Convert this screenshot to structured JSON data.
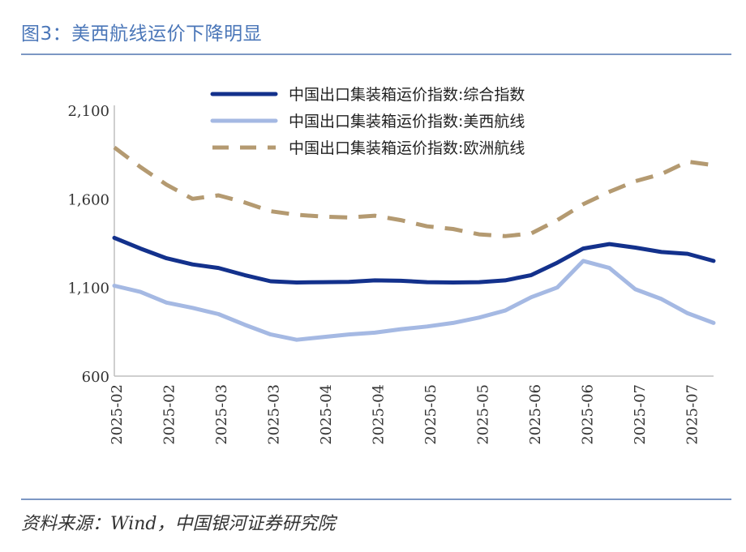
{
  "header": {
    "title": "图3：美西航线运价下降明显"
  },
  "footer": {
    "source": "资料来源：Wind，中国银河证券研究院"
  },
  "chart_data": {
    "type": "line",
    "title": "图3：美西航线运价下降明显",
    "xlabel": "",
    "ylabel": "",
    "ylim": [
      600,
      2100
    ],
    "yticks": [
      "600",
      "1,100",
      "1,600",
      "2,100"
    ],
    "x_tick_labels": [
      "2025-02",
      "2025-02",
      "2025-03",
      "2025-03",
      "2025-04",
      "2025-04",
      "2025-05",
      "2025-05",
      "2025-06",
      "2025-06",
      "2025-07",
      "2025-07"
    ],
    "legend_position": "top",
    "grid": false,
    "series": [
      {
        "name": "中国出口集装箱运价指数:综合指数",
        "color": "#13318c",
        "style": "solid",
        "values": [
          1380,
          1320,
          1265,
          1230,
          1210,
          1170,
          1135,
          1128,
          1130,
          1132,
          1140,
          1138,
          1130,
          1128,
          1130,
          1140,
          1170,
          1240,
          1320,
          1345,
          1325,
          1300,
          1290,
          1250
        ]
      },
      {
        "name": "中国出口集装箱运价指数:美西航线",
        "color": "#a5b9e3",
        "style": "solid",
        "values": [
          1110,
          1075,
          1015,
          985,
          950,
          890,
          835,
          805,
          820,
          835,
          845,
          865,
          880,
          900,
          930,
          970,
          1045,
          1100,
          1250,
          1210,
          1090,
          1035,
          955,
          900
        ]
      },
      {
        "name": "中国出口集装箱运价指数:欧洲航线",
        "color": "#b49a71",
        "style": "dashed",
        "values": [
          1890,
          1780,
          1680,
          1600,
          1620,
          1580,
          1530,
          1510,
          1500,
          1495,
          1505,
          1480,
          1445,
          1430,
          1400,
          1390,
          1405,
          1480,
          1570,
          1640,
          1700,
          1740,
          1810,
          1790
        ]
      }
    ]
  }
}
